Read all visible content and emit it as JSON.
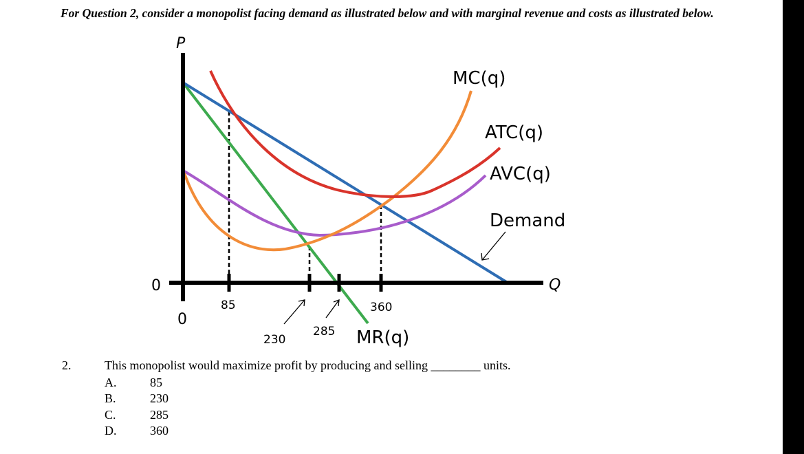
{
  "intro": "For Question 2, consider a monopolist facing demand as illustrated below and with marginal revenue and costs as illustrated below.",
  "chart_data": {
    "type": "line",
    "y_axis_label": "P",
    "x_axis_label": "Q",
    "origin_labels": [
      "0",
      "0"
    ],
    "x_ticks": [
      {
        "q": 85,
        "label": "85"
      },
      {
        "q": 230,
        "label": "230"
      },
      {
        "q": 285,
        "label": "285"
      },
      {
        "q": 360,
        "label": "360"
      }
    ],
    "curves": [
      {
        "label": "MC(q)",
        "color": "#F28C38"
      },
      {
        "label": "ATC(q)",
        "color": "#D9342B"
      },
      {
        "label": "AVC(q)",
        "color": "#A85CCB"
      },
      {
        "label": "Demand",
        "color": "#2E6DB4"
      },
      {
        "label": "MR(q)",
        "color": "#3DAA4E"
      }
    ],
    "dashed_lines_at_q": [
      85,
      230,
      360
    ]
  },
  "question": {
    "number": "2.",
    "text": "This monopolist would maximize profit by producing and selling ________ units.",
    "options": [
      {
        "letter": "A.",
        "value": "85"
      },
      {
        "letter": "B.",
        "value": "230"
      },
      {
        "letter": "C.",
        "value": "285"
      },
      {
        "letter": "D.",
        "value": "360"
      }
    ]
  }
}
